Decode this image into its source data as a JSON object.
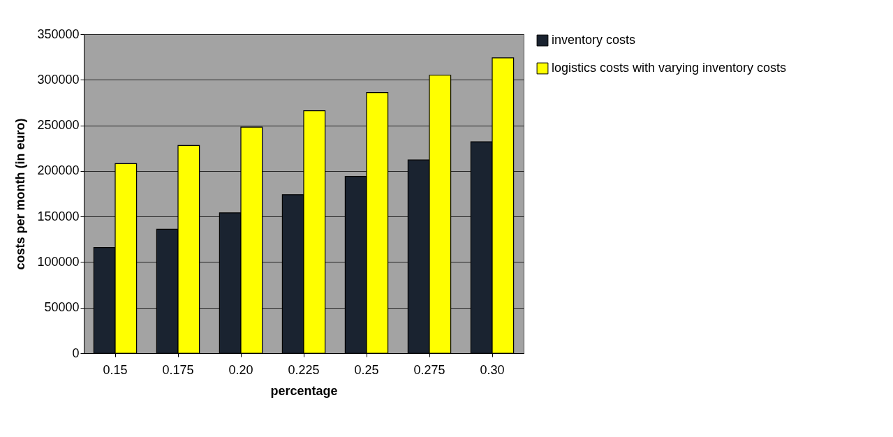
{
  "chart_data": {
    "type": "bar",
    "xlabel": "percentage",
    "ylabel": "costs per month (in euro)",
    "categories": [
      "0.15",
      "0.175",
      "0.20",
      "0.225",
      "0.25",
      "0.275",
      "0.30"
    ],
    "series": [
      {
        "name": "inventory costs",
        "color": "#1a2330",
        "values": [
          116000,
          136000,
          154000,
          174000,
          194000,
          212000,
          232000
        ]
      },
      {
        "name": "logistics costs with varying inventory costs",
        "color": "#ffff00",
        "values": [
          208000,
          228000,
          248000,
          266000,
          286000,
          305000,
          324000
        ]
      }
    ],
    "ylim": [
      0,
      350000
    ],
    "yticks": [
      0,
      50000,
      100000,
      150000,
      200000,
      250000,
      300000,
      350000
    ],
    "grid": "y",
    "legend": "right"
  }
}
